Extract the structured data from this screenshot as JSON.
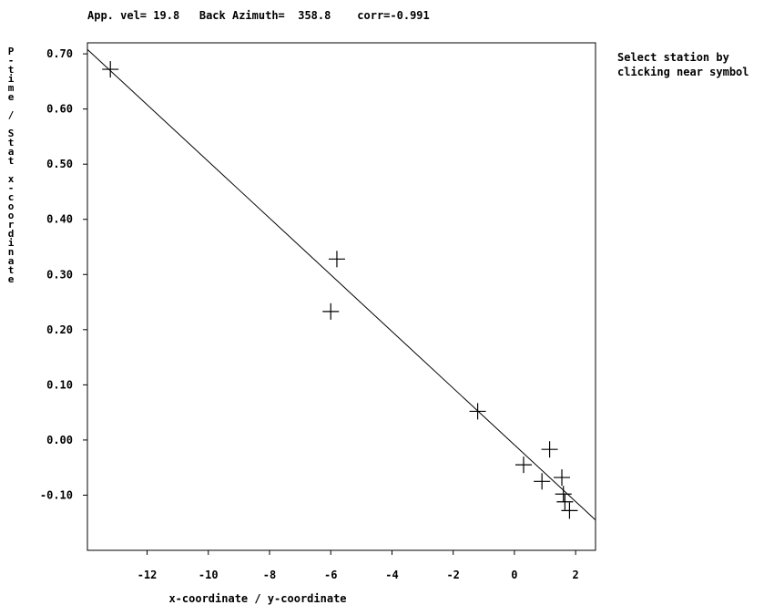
{
  "header": {
    "app_vel_label": "App. vel=",
    "app_vel_value": "19.8",
    "back_azimuth_label": "Back Azimuth=",
    "back_azimuth_value": "358.8",
    "corr_label": "corr=",
    "corr_value": "-0.991"
  },
  "instructions": {
    "line1": "Select station by",
    "line2": "clicking near symbol"
  },
  "chart_data": {
    "type": "scatter",
    "xlabel": "x-coordinate / y-coordinate",
    "ylabel": "P-time / Stat x-coordinate",
    "xlim": [
      -13.95,
      2.65
    ],
    "ylim": [
      -0.2,
      0.72
    ],
    "x_ticks": [
      -12,
      -10,
      -8,
      -6,
      -4,
      -2,
      0,
      2
    ],
    "x_tick_labels": [
      "-12",
      "-10",
      "-8",
      "-6",
      "-4",
      "-2",
      "0",
      "2"
    ],
    "y_ticks": [
      0.7,
      0.6,
      0.5,
      0.4,
      0.3,
      0.2,
      0.1,
      0.0,
      -0.1
    ],
    "y_tick_labels": [
      "0.70",
      "0.60",
      "0.50",
      "0.40",
      "0.30",
      "0.20",
      "0.10",
      "0.00",
      "-0.10"
    ],
    "marker": "plus",
    "points": [
      {
        "x": -13.2,
        "y": 0.672
      },
      {
        "x": -5.8,
        "y": 0.328
      },
      {
        "x": -6.0,
        "y": 0.233
      },
      {
        "x": -1.2,
        "y": 0.052
      },
      {
        "x": 0.3,
        "y": -0.045
      },
      {
        "x": 0.9,
        "y": -0.075
      },
      {
        "x": 1.15,
        "y": -0.017
      },
      {
        "x": 1.55,
        "y": -0.068
      },
      {
        "x": 1.6,
        "y": -0.098
      },
      {
        "x": 1.65,
        "y": -0.112
      },
      {
        "x": 1.8,
        "y": -0.128
      }
    ],
    "fit_line": {
      "x": [
        -13.95,
        2.65
      ],
      "y": [
        0.708,
        -0.145
      ]
    },
    "grid": false
  }
}
